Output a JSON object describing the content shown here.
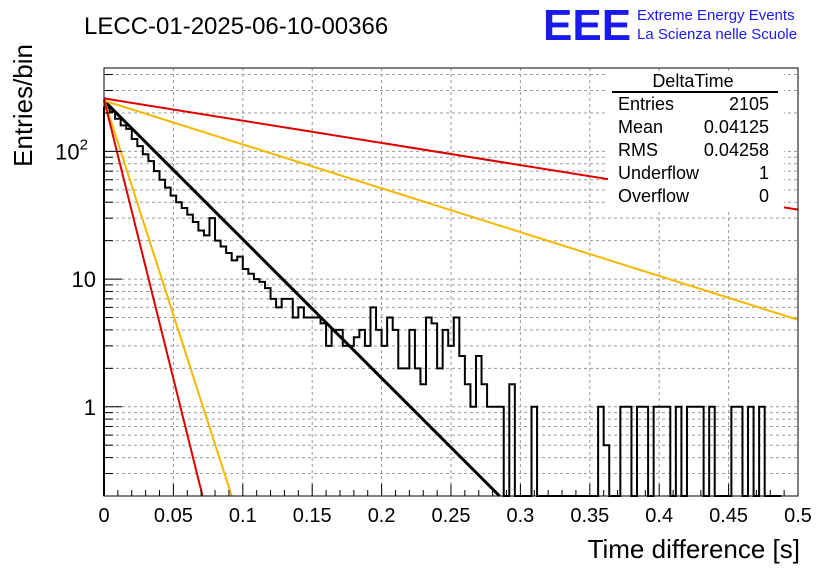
{
  "chart_data": {
    "type": "histogram",
    "title": "LECC-01-2025-06-10-00366",
    "xlabel": "Time difference [s]",
    "ylabel": "Entries/bin",
    "xlim": [
      0,
      0.5
    ],
    "ylim": [
      0.2,
      450
    ],
    "yscale": "log",
    "grid": true,
    "x_ticks": [
      "0",
      "0.05",
      "0.1",
      "0.15",
      "0.2",
      "0.25",
      "0.3",
      "0.35",
      "0.4",
      "0.45",
      "0.5"
    ],
    "y_tick_labels": [
      {
        "value": 1,
        "base": "1",
        "exp": ""
      },
      {
        "value": 10,
        "base": "10",
        "exp": ""
      },
      {
        "value": 100,
        "base": "10",
        "exp": "2"
      }
    ],
    "bin_width": 0.004,
    "histogram": {
      "name": "DeltaTime",
      "values": [
        220,
        205,
        180,
        160,
        150,
        125,
        110,
        95,
        84,
        70,
        60,
        52,
        45,
        40,
        36,
        32,
        28,
        24,
        22,
        30,
        20,
        18,
        16,
        14,
        15,
        12,
        11,
        10,
        9.5,
        8.5,
        7,
        6,
        7,
        7,
        5,
        6,
        5,
        5,
        5,
        4.5,
        3,
        4,
        4,
        3,
        3,
        3.5,
        4,
        3,
        6,
        4,
        3,
        5,
        4,
        2,
        2,
        4,
        2,
        1.5,
        5,
        4.5,
        2,
        4,
        3,
        5,
        2.5,
        1.5,
        1,
        2.5,
        1.5,
        1,
        1,
        1,
        0,
        1.5,
        0,
        0,
        0,
        1,
        0,
        0,
        0,
        0,
        0,
        0,
        0,
        0,
        0,
        0,
        0,
        1,
        0.5,
        0,
        0,
        1,
        1,
        0,
        1,
        1,
        0,
        1,
        1,
        1,
        0,
        1,
        0,
        1,
        1,
        1,
        0,
        1,
        0,
        0,
        0,
        1,
        1,
        0,
        1,
        0,
        1,
        0,
        0,
        0
      ]
    },
    "fits": [
      {
        "color": "#000000",
        "x0": 0.0,
        "y0": 250,
        "x1": 0.285,
        "y1": 0.2
      },
      {
        "color": "#dd0000",
        "x0": 0.0,
        "y0": 260,
        "x1": 0.5,
        "y1": 35
      },
      {
        "color": "#f5b800",
        "x0": 0.0,
        "y0": 250,
        "x1": 0.5,
        "y1": 4.8
      },
      {
        "color": "#f5b800",
        "x0": 0.0,
        "y0": 255,
        "x1": 0.092,
        "y1": 0.2
      },
      {
        "color": "#dd0000",
        "x0": 0.0,
        "y0": 255,
        "x1": 0.071,
        "y1": 0.2
      }
    ],
    "stats": {
      "title": "DeltaTime",
      "rows": [
        {
          "label": "Entries",
          "value": "2105"
        },
        {
          "label": "Mean",
          "value": "0.04125"
        },
        {
          "label": "RMS",
          "value": "0.04258"
        },
        {
          "label": "Underflow",
          "value": "1"
        },
        {
          "label": "Overflow",
          "value": "0"
        }
      ]
    }
  },
  "logo": {
    "mark": "EEE",
    "line1": "Extreme Energy Events",
    "line2": "La Scienza nelle Scuole",
    "color": "#1a1aee"
  }
}
